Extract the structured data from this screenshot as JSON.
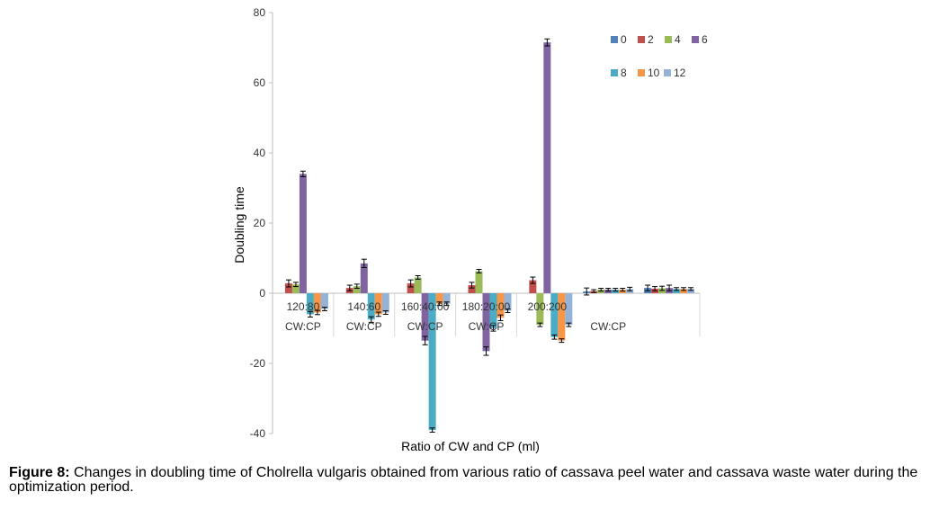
{
  "chart_data": {
    "type": "bar",
    "title": "",
    "xlabel": "Ratio of CW and CP (ml)",
    "ylabel": "Doubling time",
    "ylim": [
      -40,
      80
    ],
    "yticks": [
      80,
      60,
      40,
      20,
      0,
      -20,
      -40
    ],
    "grid": false,
    "legend_position": "top-right",
    "categories": [
      "120:80 CW:CP",
      "140:60 CW:CP",
      "160:40:00 CW:CP",
      "180:20:00 CW:CP",
      "200:200",
      "",
      ""
    ],
    "category_label_lines": [
      [
        "120:80",
        "CW:CP"
      ],
      [
        "140:60",
        "CW:CP"
      ],
      [
        "160:40:00",
        "CW:CP"
      ],
      [
        "180:20:00",
        "CW:CP"
      ],
      [
        "200:200",
        ""
      ],
      [
        "",
        "CW:CP"
      ],
      [
        "",
        ""
      ]
    ],
    "series": [
      {
        "name": "0",
        "color": "#4f81bd",
        "values": [
          0,
          0,
          0,
          0,
          0,
          0.5,
          1.5
        ],
        "errors": [
          0,
          0,
          0,
          0,
          0,
          1.0,
          0.8
        ]
      },
      {
        "name": "2",
        "color": "#c0504d",
        "values": [
          2.8,
          1.5,
          2.8,
          2.3,
          3.7,
          0.6,
          1.3
        ],
        "errors": [
          1.0,
          0.8,
          1.0,
          0.8,
          0.9,
          0.4,
          0.6
        ]
      },
      {
        "name": "4",
        "color": "#9bbb59",
        "values": [
          2.5,
          2.0,
          4.5,
          6.3,
          -9.0,
          1.0,
          1.4
        ],
        "errors": [
          0.6,
          0.6,
          0.5,
          0.5,
          0.5,
          0.4,
          0.6
        ]
      },
      {
        "name": "6",
        "color": "#8064a2",
        "values": [
          34.0,
          8.5,
          -13.5,
          -16.5,
          71.5,
          1.0,
          1.5
        ],
        "errors": [
          0.8,
          1.2,
          1.2,
          1.2,
          1.0,
          0.4,
          0.8
        ]
      },
      {
        "name": "8",
        "color": "#4bacc6",
        "values": [
          -6.0,
          -7.5,
          -39.0,
          -10.0,
          -12.5,
          1.0,
          1.2
        ],
        "errors": [
          0.8,
          0.8,
          0.6,
          0.8,
          0.6,
          0.4,
          0.4
        ]
      },
      {
        "name": "10",
        "color": "#f79646",
        "values": [
          -5.5,
          -6.0,
          -3.0,
          -7.0,
          -13.5,
          1.0,
          1.2
        ],
        "errors": [
          0.6,
          0.6,
          0.5,
          0.8,
          0.5,
          0.4,
          0.4
        ]
      },
      {
        "name": "12",
        "color": "#95b3d7",
        "values": [
          -4.5,
          -5.5,
          -3.0,
          -5.0,
          -9.0,
          1.2,
          1.2
        ],
        "errors": [
          0.5,
          0.5,
          0.5,
          0.5,
          0.5,
          0.5,
          0.4
        ]
      }
    ]
  },
  "caption": {
    "figure_number": "Figure 8:",
    "text": " Changes in doubling time of Cholrella vulgaris obtained from various ratio of cassava peel water and cassava waste water during the optimization period."
  }
}
